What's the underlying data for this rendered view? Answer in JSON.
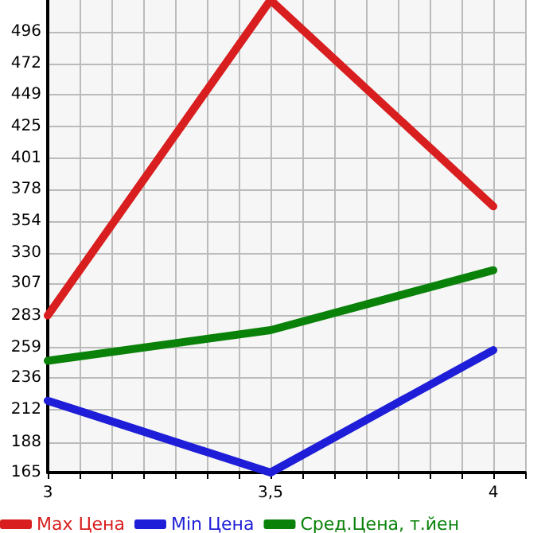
{
  "chart_data": {
    "type": "line",
    "x": [
      3,
      3.5,
      4
    ],
    "series": [
      {
        "name": "Max Цена",
        "color": "#d81e1e",
        "values": [
          283,
          520,
          365
        ]
      },
      {
        "name": "Min Цена",
        "color": "#1e1ed8",
        "values": [
          219,
          165,
          257
        ]
      },
      {
        "name": "Сред.Цена, т.йен",
        "color": "#0a820a",
        "values": [
          249,
          272,
          317
        ]
      }
    ],
    "xlim": [
      3,
      4.0714
    ],
    "xticks": [
      3,
      {
        "value": 3.0714,
        "label": null
      },
      {
        "value": 3.1429,
        "label": null
      },
      {
        "value": 3.2143,
        "label": null
      },
      {
        "value": 3.2857,
        "label": null
      },
      {
        "value": 3.3571,
        "label": null
      },
      {
        "value": 3.4286,
        "label": null
      },
      {
        "value": 3.5,
        "label": "3,5"
      },
      {
        "value": 3.5714,
        "label": null
      },
      {
        "value": 3.6429,
        "label": null
      },
      {
        "value": 3.7143,
        "label": null
      },
      {
        "value": 3.7857,
        "label": null
      },
      {
        "value": 3.8571,
        "label": null
      },
      {
        "value": 3.9286,
        "label": null
      },
      4,
      {
        "value": 4.0714,
        "label": null
      }
    ],
    "ylim": [
      165,
      520
    ],
    "yticks": [
      165,
      188,
      212,
      236,
      259,
      283,
      307,
      330,
      354,
      378,
      401,
      425,
      449,
      472,
      496
    ],
    "grid": true,
    "legend": "bottom",
    "marker": "none",
    "line_style": "solid"
  }
}
